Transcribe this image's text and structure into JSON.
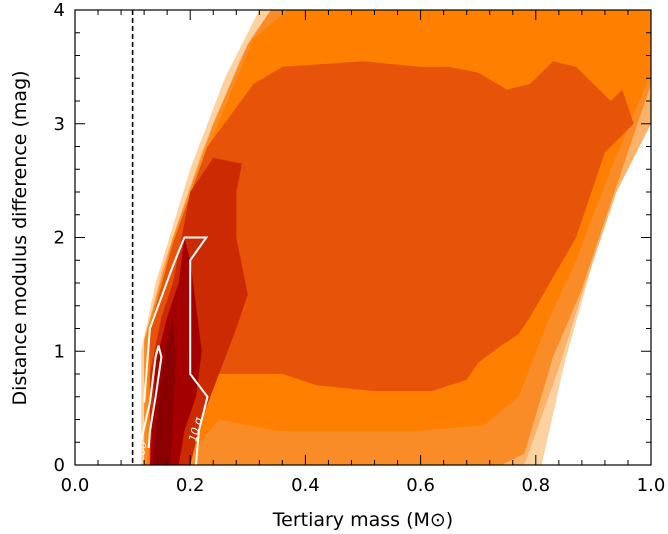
{
  "chart_data": {
    "type": "filled-contour",
    "xlabel": "Tertiary mass (M⊙)",
    "ylabel": "Distance modulus difference (mag)",
    "xlim": [
      0.0,
      1.0
    ],
    "ylim": [
      0.0,
      4.0
    ],
    "x_ticks": [
      "0.0",
      "0.2",
      "0.4",
      "0.6",
      "0.8",
      "1.0"
    ],
    "y_ticks": [
      "0",
      "1",
      "2",
      "3",
      "4"
    ],
    "grid": false,
    "colors": {
      "level1": "#fcd2a0",
      "level2": "#fbb26a",
      "level3": "#f98c26",
      "level4": "#ff7f00",
      "level5": "#e8530a",
      "level6": "#cc2a02",
      "level7": "#a40000",
      "level8": "#8a0000",
      "cutoff_line": "#000000",
      "contour_lines": "#ffffff"
    },
    "filled_levels": [
      {
        "level": 1,
        "polygon": [
          [
            0.115,
            0.0
          ],
          [
            0.115,
            1.0
          ],
          [
            0.14,
            1.6
          ],
          [
            0.2,
            2.6
          ],
          [
            0.26,
            3.4
          ],
          [
            0.32,
            4.0
          ],
          [
            1.0,
            4.0
          ],
          [
            1.0,
            3.1
          ],
          [
            0.95,
            2.6
          ],
          [
            0.9,
            1.8
          ],
          [
            0.85,
            0.9
          ],
          [
            0.81,
            0.0
          ]
        ]
      },
      {
        "level": 2,
        "polygon": [
          [
            0.12,
            0.0
          ],
          [
            0.12,
            1.05
          ],
          [
            0.15,
            1.7
          ],
          [
            0.22,
            2.75
          ],
          [
            0.29,
            3.6
          ],
          [
            0.34,
            4.0
          ],
          [
            1.0,
            4.0
          ],
          [
            1.0,
            3.0
          ],
          [
            0.94,
            2.4
          ],
          [
            0.88,
            1.5
          ],
          [
            0.84,
            0.85
          ],
          [
            0.78,
            0.0
          ]
        ]
      },
      {
        "level": 3,
        "polygon": [
          [
            0.12,
            0.0
          ],
          [
            0.12,
            1.1
          ],
          [
            0.17,
            2.0
          ],
          [
            0.24,
            3.0
          ],
          [
            0.3,
            3.7
          ],
          [
            0.34,
            4.0
          ],
          [
            1.0,
            4.0
          ],
          [
            1.0,
            3.35
          ],
          [
            0.94,
            2.45
          ],
          [
            0.88,
            1.55
          ],
          [
            0.83,
            0.95
          ],
          [
            0.78,
            0.1
          ],
          [
            0.74,
            0.0
          ]
        ]
      },
      {
        "level": 4,
        "polygon": [
          [
            0.125,
            0.0
          ],
          [
            0.125,
            1.15
          ],
          [
            0.17,
            1.95
          ],
          [
            0.24,
            2.9
          ],
          [
            0.31,
            3.75
          ],
          [
            0.37,
            4.0
          ],
          [
            1.0,
            4.0
          ],
          [
            1.0,
            3.45
          ],
          [
            0.93,
            2.6
          ],
          [
            0.87,
            1.8
          ],
          [
            0.82,
            1.25
          ],
          [
            0.77,
            0.6
          ],
          [
            0.71,
            0.35
          ],
          [
            0.6,
            0.3
          ],
          [
            0.44,
            0.3
          ],
          [
            0.35,
            0.3
          ],
          [
            0.25,
            0.4
          ],
          [
            0.2,
            0.1
          ],
          [
            0.19,
            0.0
          ]
        ]
      },
      {
        "level": 5,
        "polygon": [
          [
            0.13,
            0.0
          ],
          [
            0.13,
            1.2
          ],
          [
            0.17,
            1.95
          ],
          [
            0.23,
            2.8
          ],
          [
            0.31,
            3.35
          ],
          [
            0.36,
            3.5
          ],
          [
            0.5,
            3.55
          ],
          [
            0.6,
            3.5
          ],
          [
            0.65,
            3.5
          ],
          [
            0.7,
            3.45
          ],
          [
            0.75,
            3.3
          ],
          [
            0.79,
            3.35
          ],
          [
            0.83,
            3.55
          ],
          [
            0.87,
            3.5
          ],
          [
            0.9,
            3.35
          ],
          [
            0.93,
            3.2
          ],
          [
            0.95,
            3.3
          ],
          [
            0.97,
            3.0
          ],
          [
            0.92,
            2.75
          ],
          [
            0.87,
            2.0
          ],
          [
            0.83,
            1.65
          ],
          [
            0.79,
            1.3
          ],
          [
            0.77,
            1.15
          ],
          [
            0.74,
            1.05
          ],
          [
            0.7,
            0.9
          ],
          [
            0.68,
            0.75
          ],
          [
            0.62,
            0.65
          ],
          [
            0.52,
            0.65
          ],
          [
            0.42,
            0.7
          ],
          [
            0.36,
            0.8
          ],
          [
            0.3,
            0.8
          ],
          [
            0.24,
            0.8
          ],
          [
            0.2,
            0.3
          ],
          [
            0.19,
            0.0
          ]
        ]
      },
      {
        "level": 6,
        "polygon": [
          [
            0.13,
            0.0
          ],
          [
            0.13,
            0.8
          ],
          [
            0.15,
            1.3
          ],
          [
            0.17,
            1.6
          ],
          [
            0.2,
            2.4
          ],
          [
            0.24,
            2.7
          ],
          [
            0.29,
            2.65
          ],
          [
            0.28,
            2.4
          ],
          [
            0.28,
            2.0
          ],
          [
            0.3,
            1.5
          ],
          [
            0.28,
            1.2
          ],
          [
            0.25,
            0.8
          ],
          [
            0.22,
            0.4
          ],
          [
            0.2,
            0.0
          ]
        ]
      },
      {
        "level": 7,
        "polygon": [
          [
            0.13,
            0.0
          ],
          [
            0.14,
            0.9
          ],
          [
            0.16,
            1.3
          ],
          [
            0.18,
            1.6
          ],
          [
            0.19,
            2.0
          ],
          [
            0.2,
            1.8
          ],
          [
            0.21,
            1.4
          ],
          [
            0.22,
            1.0
          ],
          [
            0.21,
            0.6
          ],
          [
            0.19,
            0.3
          ],
          [
            0.18,
            0.0
          ]
        ]
      },
      {
        "level": 8,
        "polygon": [
          [
            0.135,
            0.0
          ],
          [
            0.145,
            0.6
          ],
          [
            0.16,
            1.1
          ],
          [
            0.17,
            1.3
          ],
          [
            0.175,
            0.9
          ],
          [
            0.17,
            0.4
          ],
          [
            0.165,
            0.0
          ]
        ]
      }
    ],
    "contours": [
      {
        "label": "6σ",
        "points": [
          [
            0.112,
            0.15
          ],
          [
            0.13,
            0.55
          ],
          [
            0.14,
            0.95
          ],
          [
            0.145,
            1.05
          ],
          [
            0.15,
            0.95
          ],
          [
            0.14,
            0.6
          ],
          [
            0.13,
            0.3
          ],
          [
            0.128,
            0.15
          ]
        ]
      },
      {
        "label": "10 σ",
        "points": [
          [
            0.12,
            0.55
          ],
          [
            0.13,
            1.2
          ],
          [
            0.17,
            1.75
          ],
          [
            0.19,
            2.0
          ],
          [
            0.228,
            2.0
          ],
          [
            0.2,
            1.8
          ],
          [
            0.2,
            1.4
          ],
          [
            0.2,
            0.8
          ],
          [
            0.23,
            0.6
          ],
          [
            0.215,
            0.3
          ],
          [
            0.21,
            0.0
          ]
        ]
      }
    ],
    "mass_cutoff": 0.1
  }
}
